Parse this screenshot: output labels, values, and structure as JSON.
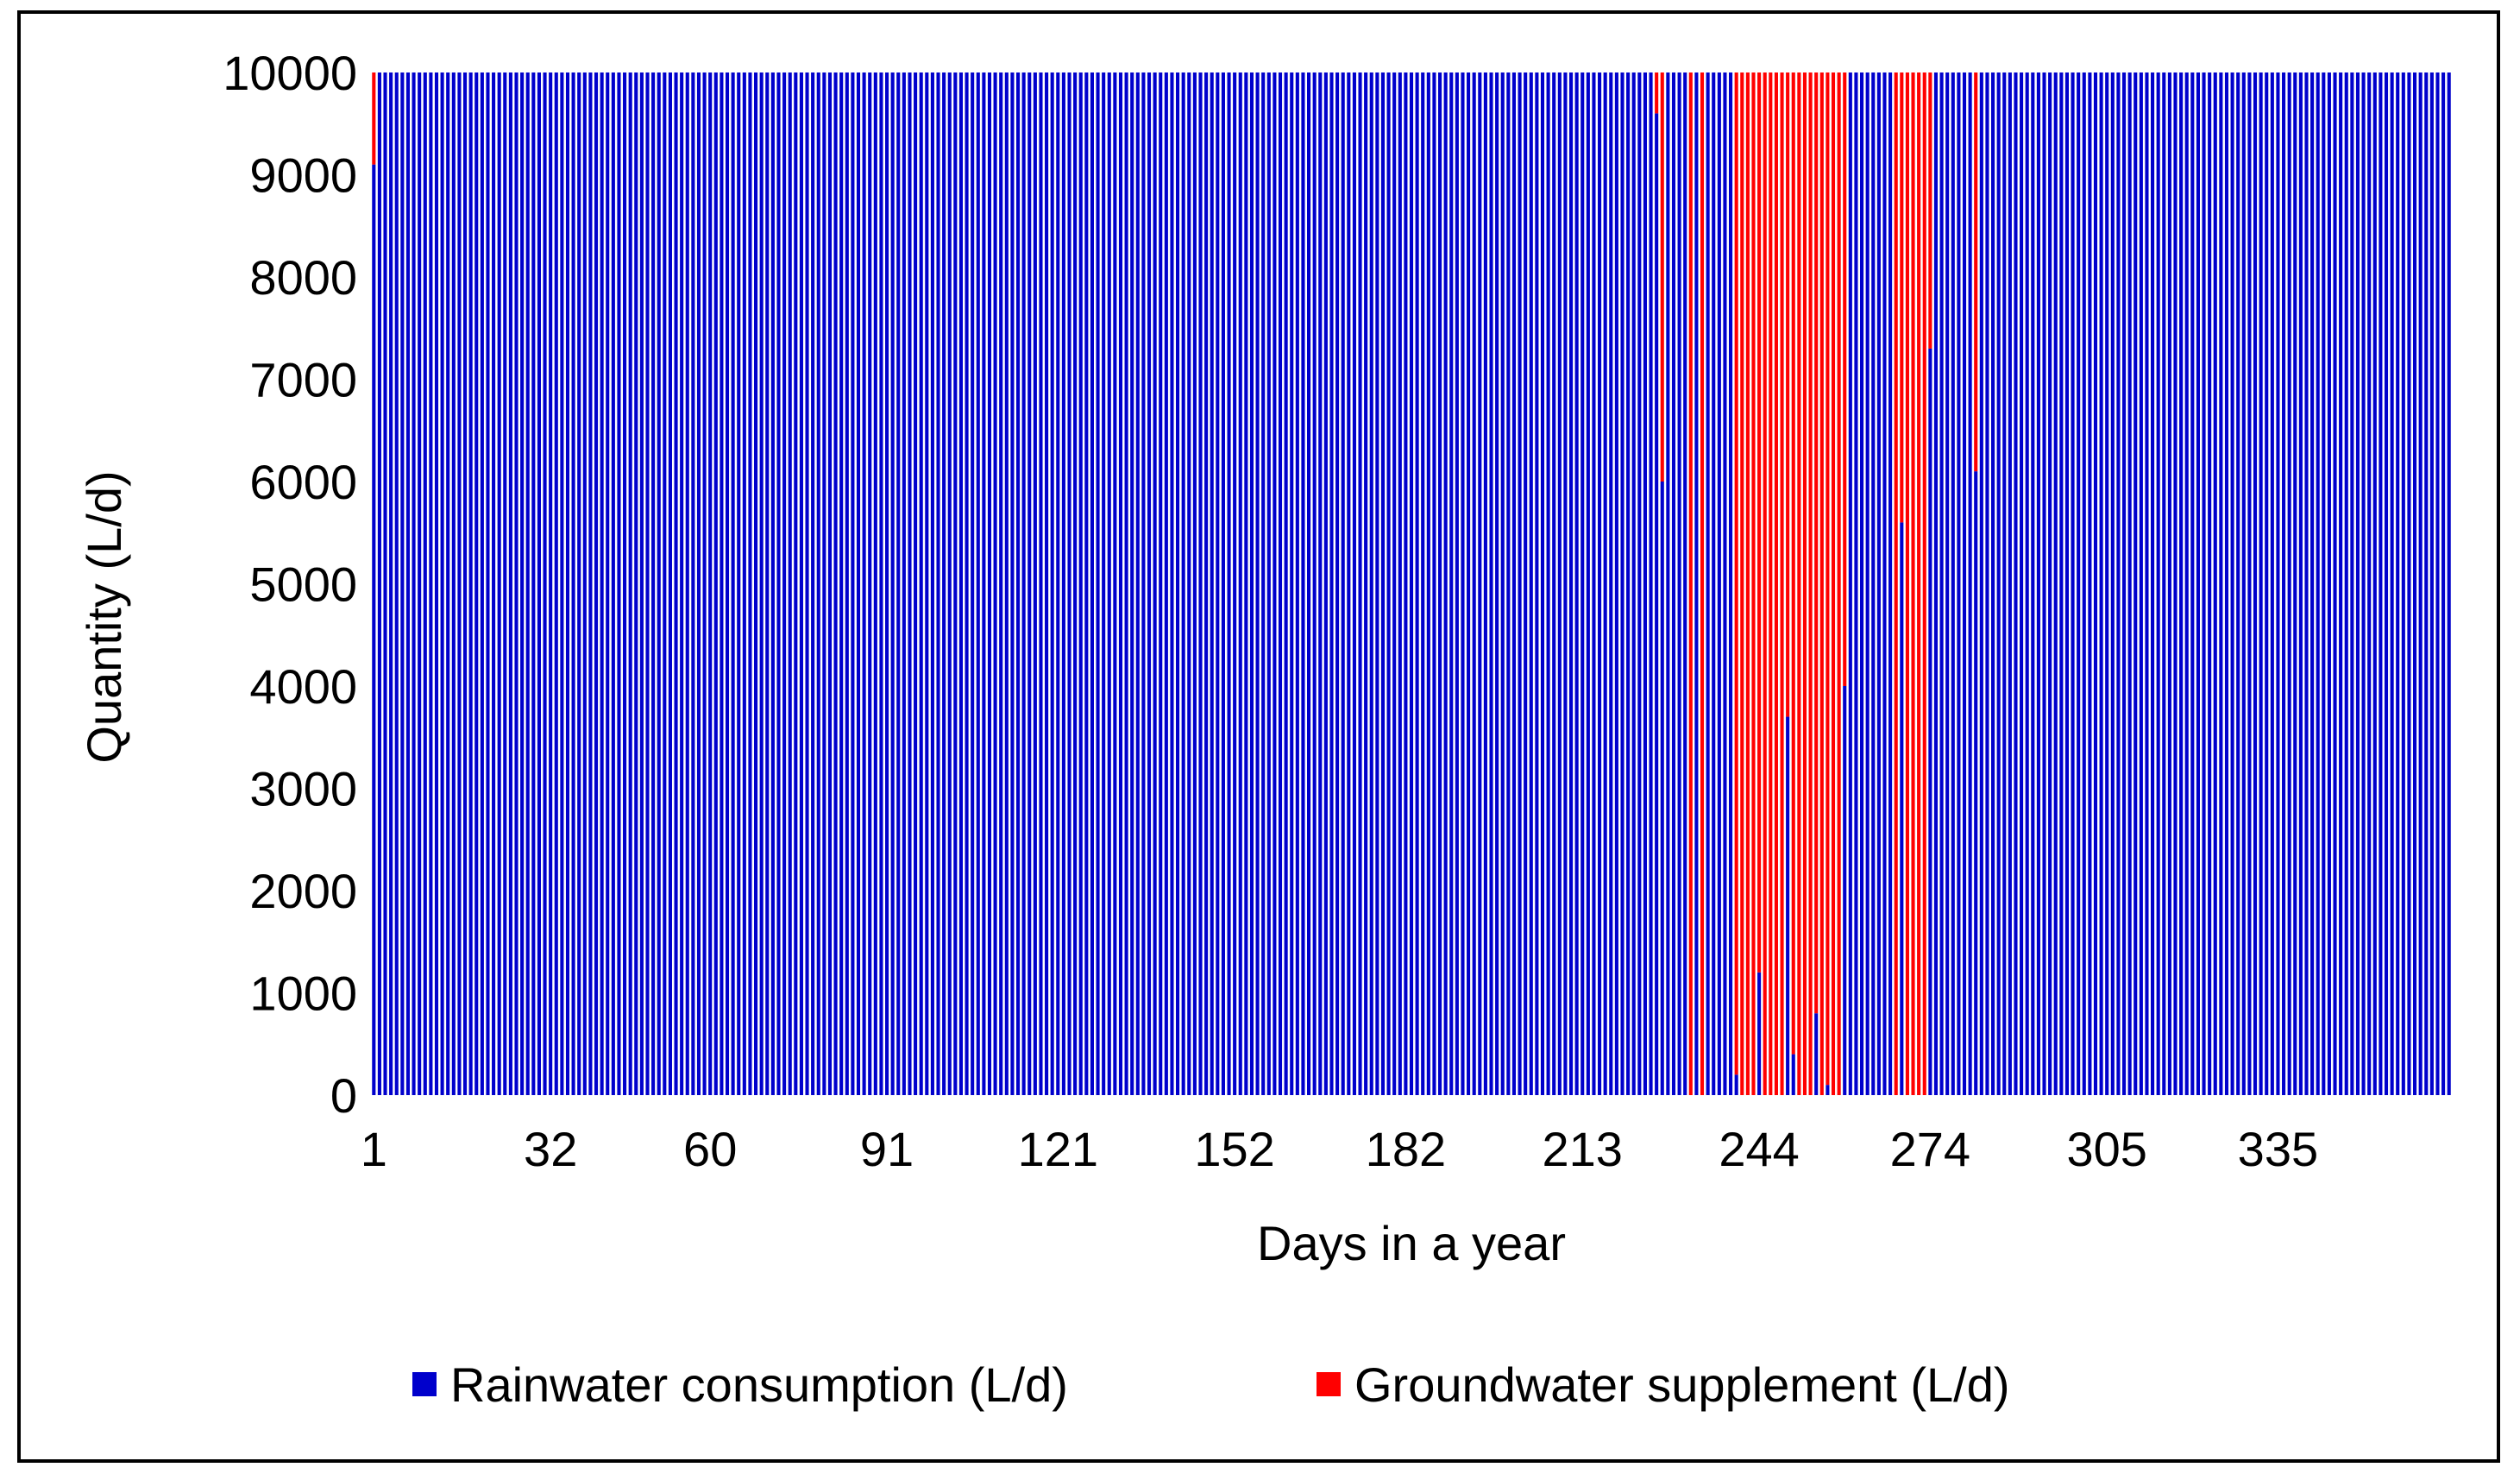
{
  "chart_data": {
    "type": "bar",
    "stacked": true,
    "xlabel": "Days in a year",
    "ylabel": "Quantity (L/d)",
    "ylim": [
      0,
      10000
    ],
    "yticks": [
      0,
      1000,
      2000,
      3000,
      4000,
      5000,
      6000,
      7000,
      8000,
      9000,
      10000
    ],
    "xticks": [
      1,
      32,
      60,
      91,
      121,
      152,
      182,
      213,
      244,
      274,
      305,
      335
    ],
    "days": 365,
    "grid": false,
    "legend_position": "bottom",
    "series": [
      {
        "name": "Rainwater consumption (L/d)",
        "color": "#0000CC",
        "key": "rain"
      },
      {
        "name": "Groundwater supplement (L/d)",
        "color": "#FF0000",
        "key": "ground"
      }
    ],
    "groundwater_by_day": [
      {
        "day": 1,
        "value": 900
      },
      {
        "day": 226,
        "value": 400
      },
      {
        "day": 227,
        "value": 4000
      },
      {
        "day": 232,
        "value": 10000
      },
      {
        "day": 234,
        "value": 10000
      },
      {
        "day": 240,
        "value": 9800
      },
      {
        "day": 241,
        "value": 10000
      },
      {
        "day": 242,
        "value": 10000
      },
      {
        "day": 243,
        "value": 10000
      },
      {
        "day": 244,
        "value": 8800
      },
      {
        "day": 245,
        "value": 10000
      },
      {
        "day": 246,
        "value": 10000
      },
      {
        "day": 247,
        "value": 10000
      },
      {
        "day": 248,
        "value": 10000
      },
      {
        "day": 249,
        "value": 6300
      },
      {
        "day": 250,
        "value": 9600
      },
      {
        "day": 251,
        "value": 10000
      },
      {
        "day": 252,
        "value": 10000
      },
      {
        "day": 253,
        "value": 10000
      },
      {
        "day": 254,
        "value": 9200
      },
      {
        "day": 255,
        "value": 10000
      },
      {
        "day": 256,
        "value": 9900
      },
      {
        "day": 257,
        "value": 10000
      },
      {
        "day": 258,
        "value": 10000
      },
      {
        "day": 259,
        "value": 6000
      },
      {
        "day": 268,
        "value": 10000
      },
      {
        "day": 269,
        "value": 4400
      },
      {
        "day": 270,
        "value": 10000
      },
      {
        "day": 271,
        "value": 10000
      },
      {
        "day": 272,
        "value": 10000
      },
      {
        "day": 273,
        "value": 10000
      },
      {
        "day": 274,
        "value": 2700
      },
      {
        "day": 282,
        "value": 3900
      }
    ]
  }
}
